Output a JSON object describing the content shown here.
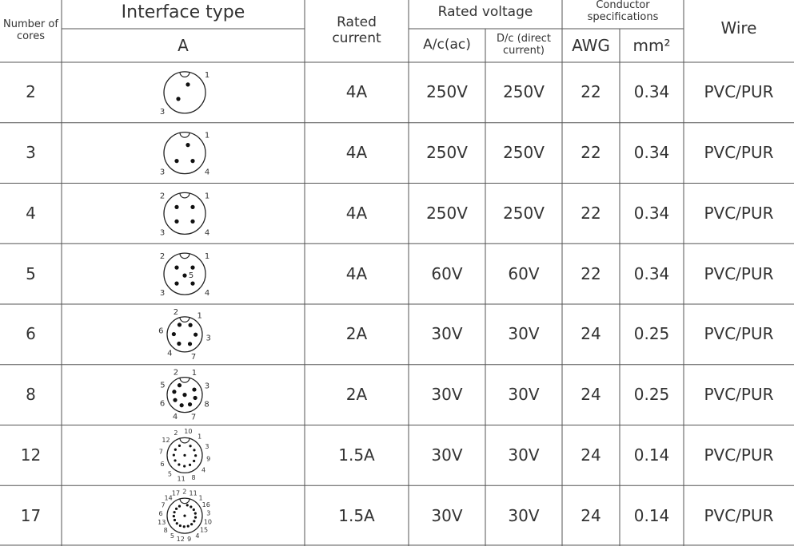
{
  "header": {
    "cores": "Number of cores",
    "interface": "Interface type",
    "interface_sub": "A",
    "current": "Rated current",
    "voltage": "Rated voltage",
    "ac": "A/c(ac)",
    "dc": "D/c (direct current)",
    "conductor": "Conductor specifications",
    "awg": "AWG",
    "mm2": "mm²",
    "wire": "Wire"
  },
  "rows": [
    {
      "cores": "2",
      "diagram": {
        "pins": [
          "1",
          "3"
        ]
      },
      "current": "4A",
      "ac": "250V",
      "dc": "250V",
      "awg": "22",
      "mm2": "0.34",
      "wire": "PVC/PUR"
    },
    {
      "cores": "3",
      "diagram": {
        "pins": [
          "1",
          "3",
          "4"
        ]
      },
      "current": "4A",
      "ac": "250V",
      "dc": "250V",
      "awg": "22",
      "mm2": "0.34",
      "wire": "PVC/PUR"
    },
    {
      "cores": "4",
      "diagram": {
        "pins": [
          "2",
          "1",
          "3",
          "4"
        ]
      },
      "current": "4A",
      "ac": "250V",
      "dc": "250V",
      "awg": "22",
      "mm2": "0.34",
      "wire": "PVC/PUR"
    },
    {
      "cores": "5",
      "diagram": {
        "pins": [
          "2",
          "1",
          "5",
          "3",
          "4"
        ]
      },
      "current": "4A",
      "ac": "60V",
      "dc": "60V",
      "awg": "22",
      "mm2": "0.34",
      "wire": "PVC/PUR"
    },
    {
      "cores": "6",
      "diagram": {
        "pins": [
          "2",
          "1",
          "3",
          "7",
          "4",
          "6"
        ]
      },
      "current": "2A",
      "ac": "30V",
      "dc": "30V",
      "awg": "24",
      "mm2": "0.25",
      "wire": "PVC/PUR"
    },
    {
      "cores": "8",
      "diagram": {
        "pins": [
          "2",
          "1",
          "3",
          "8",
          "7",
          "4",
          "6",
          "5"
        ]
      },
      "current": "2A",
      "ac": "30V",
      "dc": "30V",
      "awg": "24",
      "mm2": "0.25",
      "wire": "PVC/PUR"
    },
    {
      "cores": "12",
      "diagram": {
        "pins": [
          "2",
          "10",
          "1",
          "3",
          "9",
          "4",
          "8",
          "11",
          "5",
          "6",
          "7",
          "12"
        ]
      },
      "current": "1.5A",
      "ac": "30V",
      "dc": "30V",
      "awg": "24",
      "mm2": "0.14",
      "wire": "PVC/PUR"
    },
    {
      "cores": "17",
      "diagram": {
        "pins": [
          "17",
          "2",
          "11",
          "1",
          "16",
          "3",
          "10",
          "15",
          "4",
          "9",
          "12",
          "5",
          "8",
          "13",
          "6",
          "7",
          "14"
        ]
      },
      "current": "1.5A",
      "ac": "30V",
      "dc": "30V",
      "awg": "24",
      "mm2": "0.14",
      "wire": "PVC/PUR"
    }
  ]
}
